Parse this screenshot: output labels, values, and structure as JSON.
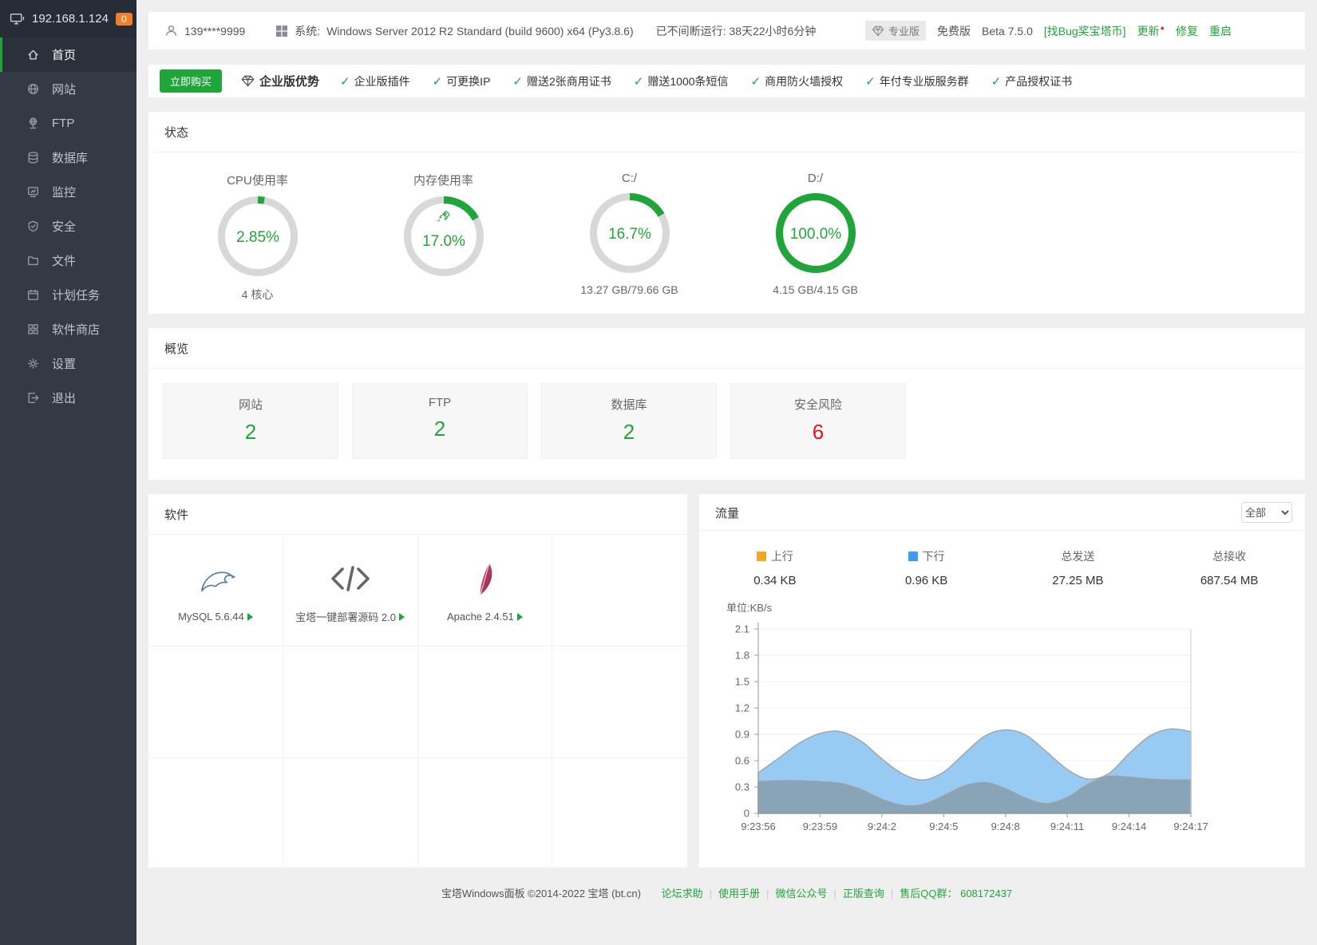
{
  "sidebar": {
    "ip": "192.168.1.124",
    "badge": "0",
    "items": [
      {
        "key": "home",
        "label": "首页",
        "icon": "home",
        "active": true
      },
      {
        "key": "website",
        "label": "网站",
        "icon": "globe",
        "active": false
      },
      {
        "key": "ftp",
        "label": "FTP",
        "icon": "ftp",
        "active": false
      },
      {
        "key": "database",
        "label": "数据库",
        "icon": "database",
        "active": false
      },
      {
        "key": "monitor",
        "label": "监控",
        "icon": "monitor",
        "active": false
      },
      {
        "key": "security",
        "label": "安全",
        "icon": "shield",
        "active": false
      },
      {
        "key": "files",
        "label": "文件",
        "icon": "folder",
        "active": false
      },
      {
        "key": "cron",
        "label": "计划任务",
        "icon": "calendar",
        "active": false
      },
      {
        "key": "appstore",
        "label": "软件商店",
        "icon": "grid",
        "active": false
      },
      {
        "key": "settings",
        "label": "设置",
        "icon": "gear",
        "active": false
      },
      {
        "key": "logout",
        "label": "退出",
        "icon": "logout",
        "active": false
      }
    ]
  },
  "topbar": {
    "user": "139****9999",
    "system_label": "系统:",
    "system_value": "Windows Server 2012 R2 Standard (build 9600) x64 (Py3.8.6)",
    "uptime": "已不间断运行: 38天22小时6分钟",
    "pro_badge": "专业版",
    "free_label": "免费版",
    "version": "Beta 7.5.0",
    "bug_bounty": "[找Bug奖宝塔币]",
    "update": "更新",
    "repair": "修复",
    "restart": "重启"
  },
  "promo": {
    "buy_button": "立即购买",
    "headline": "企业版优势",
    "features": [
      "企业版插件",
      "可更换IP",
      "赠送2张商用证书",
      "赠送1000条短信",
      "商用防火墙授权",
      "年付专业版服务群",
      "产品授权证书"
    ]
  },
  "status": {
    "title": "状态",
    "gauges": [
      {
        "key": "cpu",
        "title": "CPU使用率",
        "percent": 2.85,
        "display": "2.85%",
        "subtitle": "4 核心",
        "rocket": false
      },
      {
        "key": "memory",
        "title": "内存使用率",
        "percent": 17.0,
        "display": "17.0%",
        "subtitle": "",
        "rocket": true
      },
      {
        "key": "disk-c",
        "title": "C:/",
        "percent": 16.7,
        "display": "16.7%",
        "subtitle": "13.27 GB/79.66 GB",
        "rocket": false
      },
      {
        "key": "disk-d",
        "title": "D:/",
        "percent": 100,
        "display": "100.0%",
        "subtitle": "4.15 GB/4.15 GB",
        "rocket": false
      }
    ]
  },
  "overview": {
    "title": "概览",
    "cards": [
      {
        "key": "website",
        "label": "网站",
        "value": "2",
        "status": "ok"
      },
      {
        "key": "ftp",
        "label": "FTP",
        "value": "2",
        "status": "ok"
      },
      {
        "key": "database",
        "label": "数据库",
        "value": "2",
        "status": "ok"
      },
      {
        "key": "risk",
        "label": "安全风险",
        "value": "6",
        "status": "danger"
      }
    ]
  },
  "software": {
    "title": "软件",
    "grid": {
      "cols": 4,
      "rows": 3
    },
    "apps": [
      {
        "key": "mysql",
        "name": "MySQL 5.6.44",
        "icon": "mysql"
      },
      {
        "key": "bt-deploy",
        "name": "宝塔一键部署源码 2.0",
        "icon": "code"
      },
      {
        "key": "apache",
        "name": "Apache 2.4.51",
        "icon": "apache"
      }
    ]
  },
  "traffic": {
    "title": "流量",
    "filter_value": "全部",
    "stats": [
      {
        "key": "up",
        "label": "上行",
        "value": "0.34 KB",
        "swatch": "#f5a623"
      },
      {
        "key": "down",
        "label": "下行",
        "value": "0.96 KB",
        "swatch": "#3d9df2"
      },
      {
        "key": "sent",
        "label": "总发送",
        "value": "27.25 MB",
        "swatch": ""
      },
      {
        "key": "recv",
        "label": "总接收",
        "value": "687.54 MB",
        "swatch": ""
      }
    ]
  },
  "chart_data": {
    "type": "area",
    "title": "流量",
    "unit_label": "单位:KB/s",
    "ylim": [
      0,
      2.1
    ],
    "yticks": [
      0,
      0.3,
      0.6,
      0.9,
      1.2,
      1.5,
      1.8,
      2.1
    ],
    "xtick_seconds": [
      0,
      3,
      6,
      9,
      12,
      15,
      18,
      21
    ],
    "xticklabels": [
      "9:23:56",
      "9:23:59",
      "9:24:2",
      "9:24:5",
      "9:24:8",
      "9:24:11",
      "9:24:14",
      "9:24:17"
    ],
    "grid": true,
    "x_seconds": [
      0,
      1,
      2,
      3,
      4,
      5,
      6,
      7,
      8,
      9,
      10,
      11,
      12,
      13,
      14,
      15,
      16,
      17,
      18,
      19,
      20,
      21
    ],
    "series": [
      {
        "name": "下行",
        "fill": "#8cc5f2",
        "stroke": "#a0a6ab",
        "values": [
          0.46,
          0.63,
          0.8,
          0.91,
          0.93,
          0.82,
          0.62,
          0.45,
          0.38,
          0.47,
          0.68,
          0.88,
          0.95,
          0.89,
          0.7,
          0.5,
          0.39,
          0.45,
          0.68,
          0.88,
          0.96,
          0.93
        ]
      },
      {
        "name": "上行",
        "fill": "#8699a7",
        "stroke": "#9aa0a5",
        "values": [
          0.36,
          0.37,
          0.37,
          0.36,
          0.34,
          0.27,
          0.16,
          0.09,
          0.1,
          0.2,
          0.31,
          0.35,
          0.28,
          0.17,
          0.11,
          0.18,
          0.33,
          0.42,
          0.41,
          0.39,
          0.38,
          0.38
        ]
      }
    ]
  },
  "footer": {
    "copyright": "宝塔Windows面板 ©2014-2022 宝塔 (bt.cn)",
    "links": [
      "论坛求助",
      "使用手册",
      "微信公众号",
      "正版查询"
    ],
    "qq_label": "售后QQ群：",
    "qq_number": "608172437"
  },
  "colors": {
    "accent": "#20a53a",
    "danger": "#e01717",
    "badge_orange": "#f0802c",
    "ring_gray": "#d8d8d8"
  }
}
